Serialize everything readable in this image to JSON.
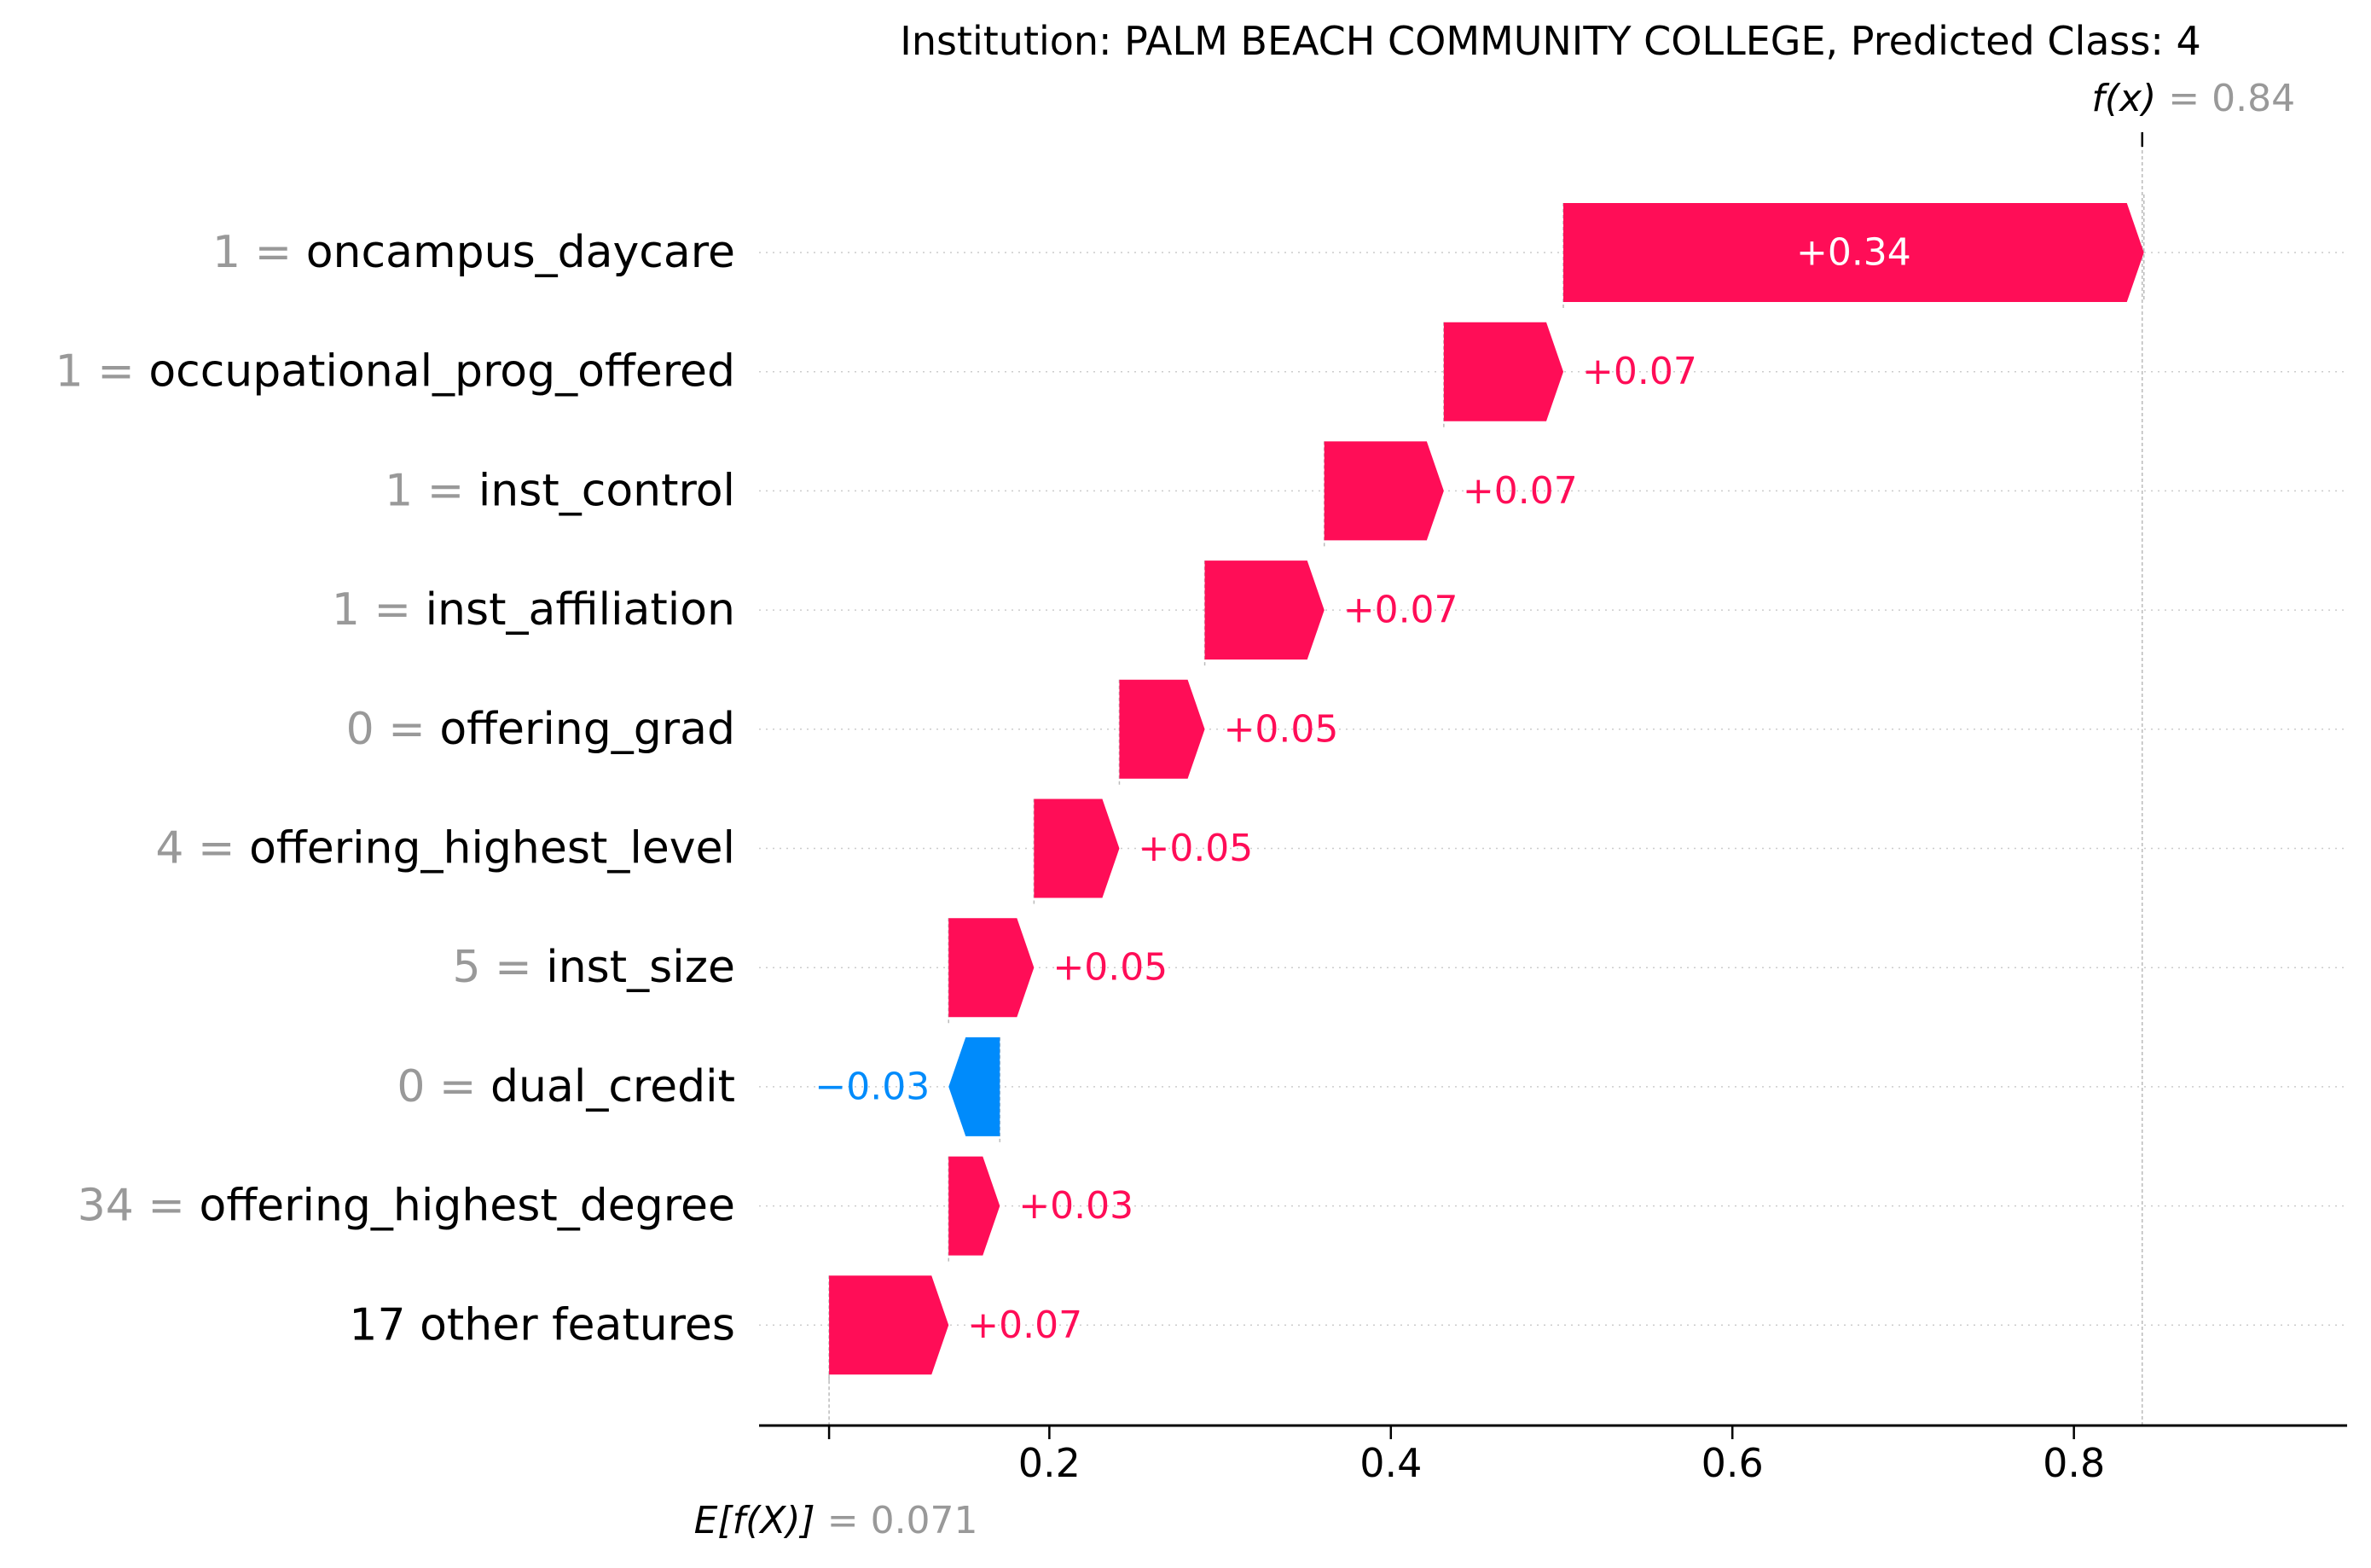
{
  "chart_data": {
    "type": "waterfall",
    "title": "Institution: PALM BEACH COMMUNITY COLLEGE, Predicted Class: 4",
    "base_value": 0.071,
    "base_label_prefix": "E[f(X)]",
    "base_label_value": "0.071",
    "output_value": 0.84,
    "output_label_prefix": "f(x)",
    "output_label_value": "0.84",
    "xlim": [
      0.03,
      0.96
    ],
    "xticks": [
      {
        "value": 0.2,
        "label": "0.2"
      },
      {
        "value": 0.4,
        "label": "0.4"
      },
      {
        "value": 0.6,
        "label": "0.6"
      },
      {
        "value": 0.8,
        "label": "0.8"
      }
    ],
    "features": [
      {
        "value_label": "1",
        "name": "oncampus_daycare",
        "shap": 0.34,
        "label": "+0.34"
      },
      {
        "value_label": "1",
        "name": "occupational_prog_offered",
        "shap": 0.07,
        "label": "+0.07"
      },
      {
        "value_label": "1",
        "name": "inst_control",
        "shap": 0.07,
        "label": "+0.07"
      },
      {
        "value_label": "1",
        "name": "inst_affiliation",
        "shap": 0.07,
        "label": "+0.07"
      },
      {
        "value_label": "0",
        "name": "offering_grad",
        "shap": 0.05,
        "label": "+0.05"
      },
      {
        "value_label": "4",
        "name": "offering_highest_level",
        "shap": 0.05,
        "label": "+0.05"
      },
      {
        "value_label": "5",
        "name": "inst_size",
        "shap": 0.05,
        "label": "+0.05"
      },
      {
        "value_label": "0",
        "name": "dual_credit",
        "shap": -0.03,
        "label": "−0.03"
      },
      {
        "value_label": "34",
        "name": "offering_highest_degree",
        "shap": 0.03,
        "label": "+0.03"
      },
      {
        "value_label": "",
        "name": "17 other features",
        "shap": 0.07,
        "label": "+0.07"
      }
    ],
    "colors": {
      "positive": "#ff0d57",
      "negative": "#008bfb",
      "value_text": "#999999",
      "axis": "#000000",
      "grid": "#cccccc"
    }
  }
}
